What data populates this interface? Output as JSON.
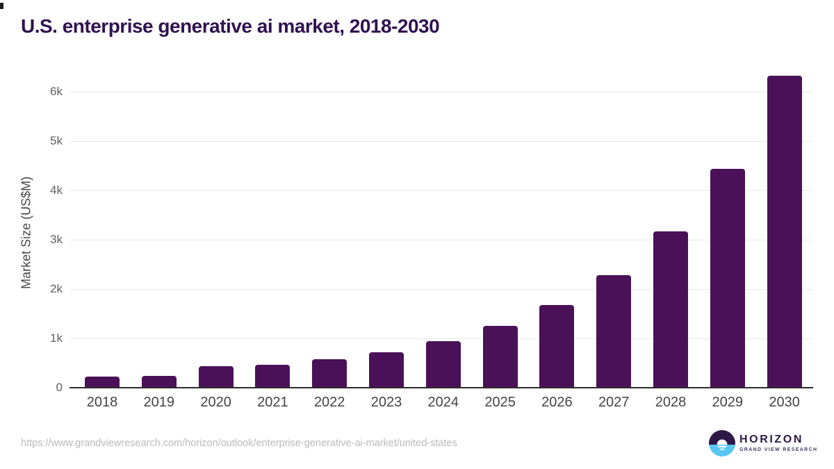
{
  "header": {
    "title": "U.S. enterprise generative ai market, 2018-2030"
  },
  "chart_data": {
    "type": "bar",
    "title": "U.S. enterprise generative ai market, 2018-2030",
    "categories": [
      "2018",
      "2019",
      "2020",
      "2021",
      "2022",
      "2023",
      "2024",
      "2025",
      "2026",
      "2027",
      "2028",
      "2029",
      "2030"
    ],
    "values": [
      220,
      240,
      430,
      460,
      580,
      720,
      940,
      1260,
      1680,
      2285,
      3165,
      4430,
      6320
    ],
    "unit": "US$M",
    "xlabel": "",
    "ylabel": "Market Size (US$M)",
    "ylim": [
      0,
      6500
    ],
    "yticks": [
      {
        "value": 0,
        "label": "0"
      },
      {
        "value": 1000,
        "label": "1k"
      },
      {
        "value": 2000,
        "label": "2k"
      },
      {
        "value": 3000,
        "label": "3k"
      },
      {
        "value": 4000,
        "label": "4k"
      },
      {
        "value": 5000,
        "label": "5k"
      },
      {
        "value": 6000,
        "label": "6k"
      }
    ],
    "grid": "horizontal",
    "legend": "none"
  },
  "footer": {
    "source_url": "https://www.grandviewresearch.com/horizon/outlook/enterprise-generative-ai-market/united-states",
    "logo": {
      "name": "HORIZON",
      "subtitle": "GRAND VIEW RESEARCH"
    }
  },
  "colors": {
    "bar": "#4a1158",
    "title": "#2f1150",
    "logo_purple": "#2d1945",
    "logo_blue": "#58c7f1",
    "axis_line": "#2b2b2b",
    "gridline": "#e8e8e8"
  }
}
